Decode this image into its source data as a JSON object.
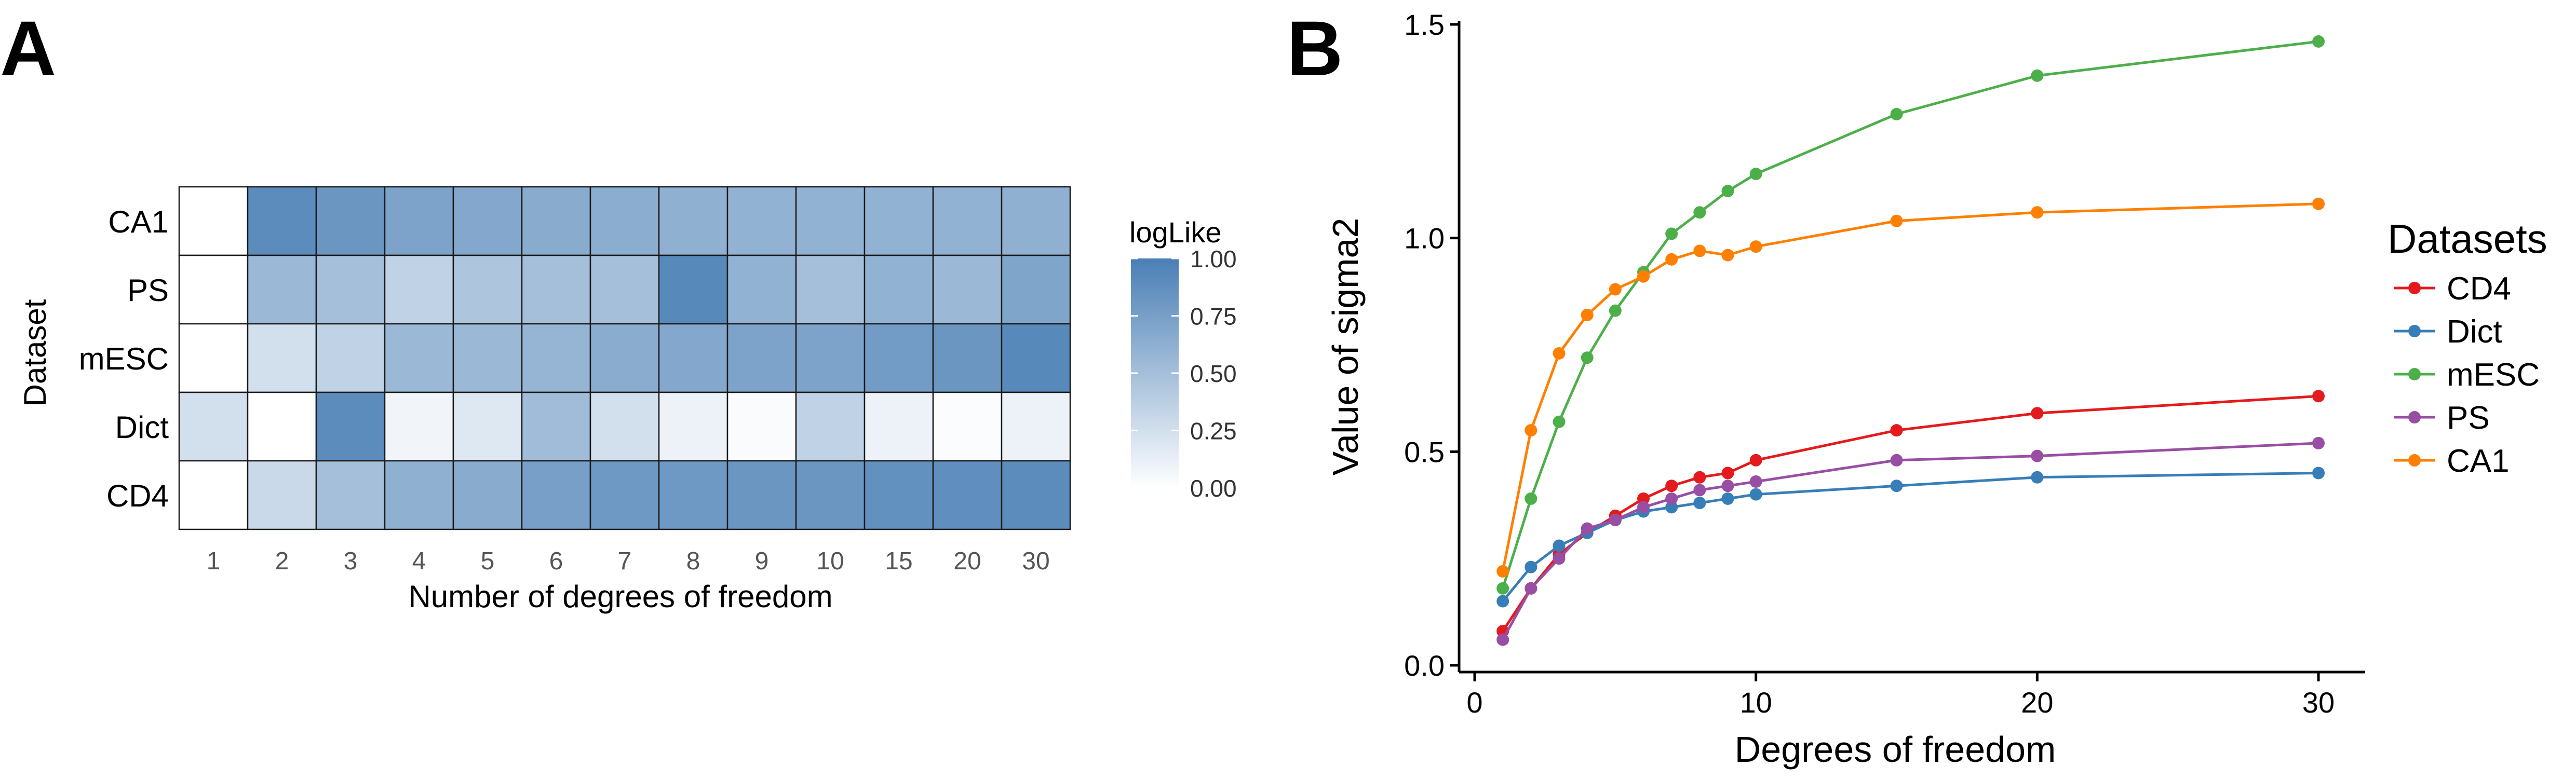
{
  "panel_labels": {
    "a": "A",
    "b": "B"
  },
  "chart_data": [
    {
      "type": "heatmap",
      "panel": "A",
      "title": "",
      "xlabel": "Number of degrees of freedom",
      "ylabel": "Dataset",
      "x_categories": [
        "1",
        "2",
        "3",
        "4",
        "5",
        "6",
        "7",
        "8",
        "9",
        "10",
        "15",
        "20",
        "30"
      ],
      "y_categories": [
        "CA1",
        "PS",
        "mESC",
        "Dict",
        "CD4"
      ],
      "values": [
        [
          0.0,
          0.9,
          0.82,
          0.72,
          0.68,
          0.66,
          0.64,
          0.62,
          0.6,
          0.6,
          0.6,
          0.6,
          0.62
        ],
        [
          0.0,
          0.55,
          0.5,
          0.35,
          0.45,
          0.5,
          0.5,
          0.92,
          0.6,
          0.5,
          0.6,
          0.55,
          0.7
        ],
        [
          0.0,
          0.25,
          0.35,
          0.55,
          0.55,
          0.58,
          0.65,
          0.68,
          0.72,
          0.72,
          0.78,
          0.82,
          0.92
        ],
        [
          0.25,
          0.0,
          0.9,
          0.08,
          0.18,
          0.52,
          0.25,
          0.1,
          0.03,
          0.35,
          0.1,
          0.02,
          0.1
        ],
        [
          0.0,
          0.3,
          0.5,
          0.62,
          0.66,
          0.75,
          0.8,
          0.8,
          0.82,
          0.82,
          0.86,
          0.88,
          0.9
        ]
      ],
      "colorbar": {
        "label": "logLike",
        "range": [
          0,
          1
        ],
        "ticks": [
          "1.00",
          "0.75",
          "0.50",
          "0.25",
          "0.00"
        ],
        "color_low": "#ffffff",
        "color_high": "#4a7fb5"
      }
    },
    {
      "type": "line",
      "panel": "B",
      "title": "",
      "xlabel": "Degrees of freedom",
      "ylabel": "Value of sigma2",
      "xlim": [
        0,
        31
      ],
      "ylim": [
        0,
        1.5
      ],
      "xticks": [
        "0",
        "10",
        "20",
        "30"
      ],
      "yticks": [
        "0.0",
        "0.5",
        "1.0",
        "1.5"
      ],
      "x": [
        1,
        2,
        3,
        4,
        5,
        6,
        7,
        8,
        9,
        10,
        15,
        20,
        30
      ],
      "legend_title": "Datasets",
      "series": [
        {
          "name": "CD4",
          "color": "#e41a1c",
          "values": [
            0.08,
            0.18,
            0.26,
            0.31,
            0.35,
            0.39,
            0.42,
            0.44,
            0.45,
            0.48,
            0.55,
            0.59,
            0.63
          ]
        },
        {
          "name": "Dict",
          "color": "#377eb8",
          "values": [
            0.15,
            0.23,
            0.28,
            0.31,
            0.34,
            0.36,
            0.37,
            0.38,
            0.39,
            0.4,
            0.42,
            0.44,
            0.45
          ]
        },
        {
          "name": "mESC",
          "color": "#4daf4a",
          "values": [
            0.18,
            0.39,
            0.57,
            0.72,
            0.83,
            0.92,
            1.01,
            1.06,
            1.11,
            1.15,
            1.29,
            1.38,
            1.46
          ]
        },
        {
          "name": "PS",
          "color": "#984ea3",
          "values": [
            0.06,
            0.18,
            0.25,
            0.32,
            0.34,
            0.37,
            0.39,
            0.41,
            0.42,
            0.43,
            0.48,
            0.49,
            0.52
          ]
        },
        {
          "name": "CA1",
          "color": "#ff7f00",
          "values": [
            0.22,
            0.55,
            0.73,
            0.82,
            0.88,
            0.91,
            0.95,
            0.97,
            0.96,
            0.98,
            1.04,
            1.06,
            1.08
          ]
        }
      ]
    }
  ]
}
